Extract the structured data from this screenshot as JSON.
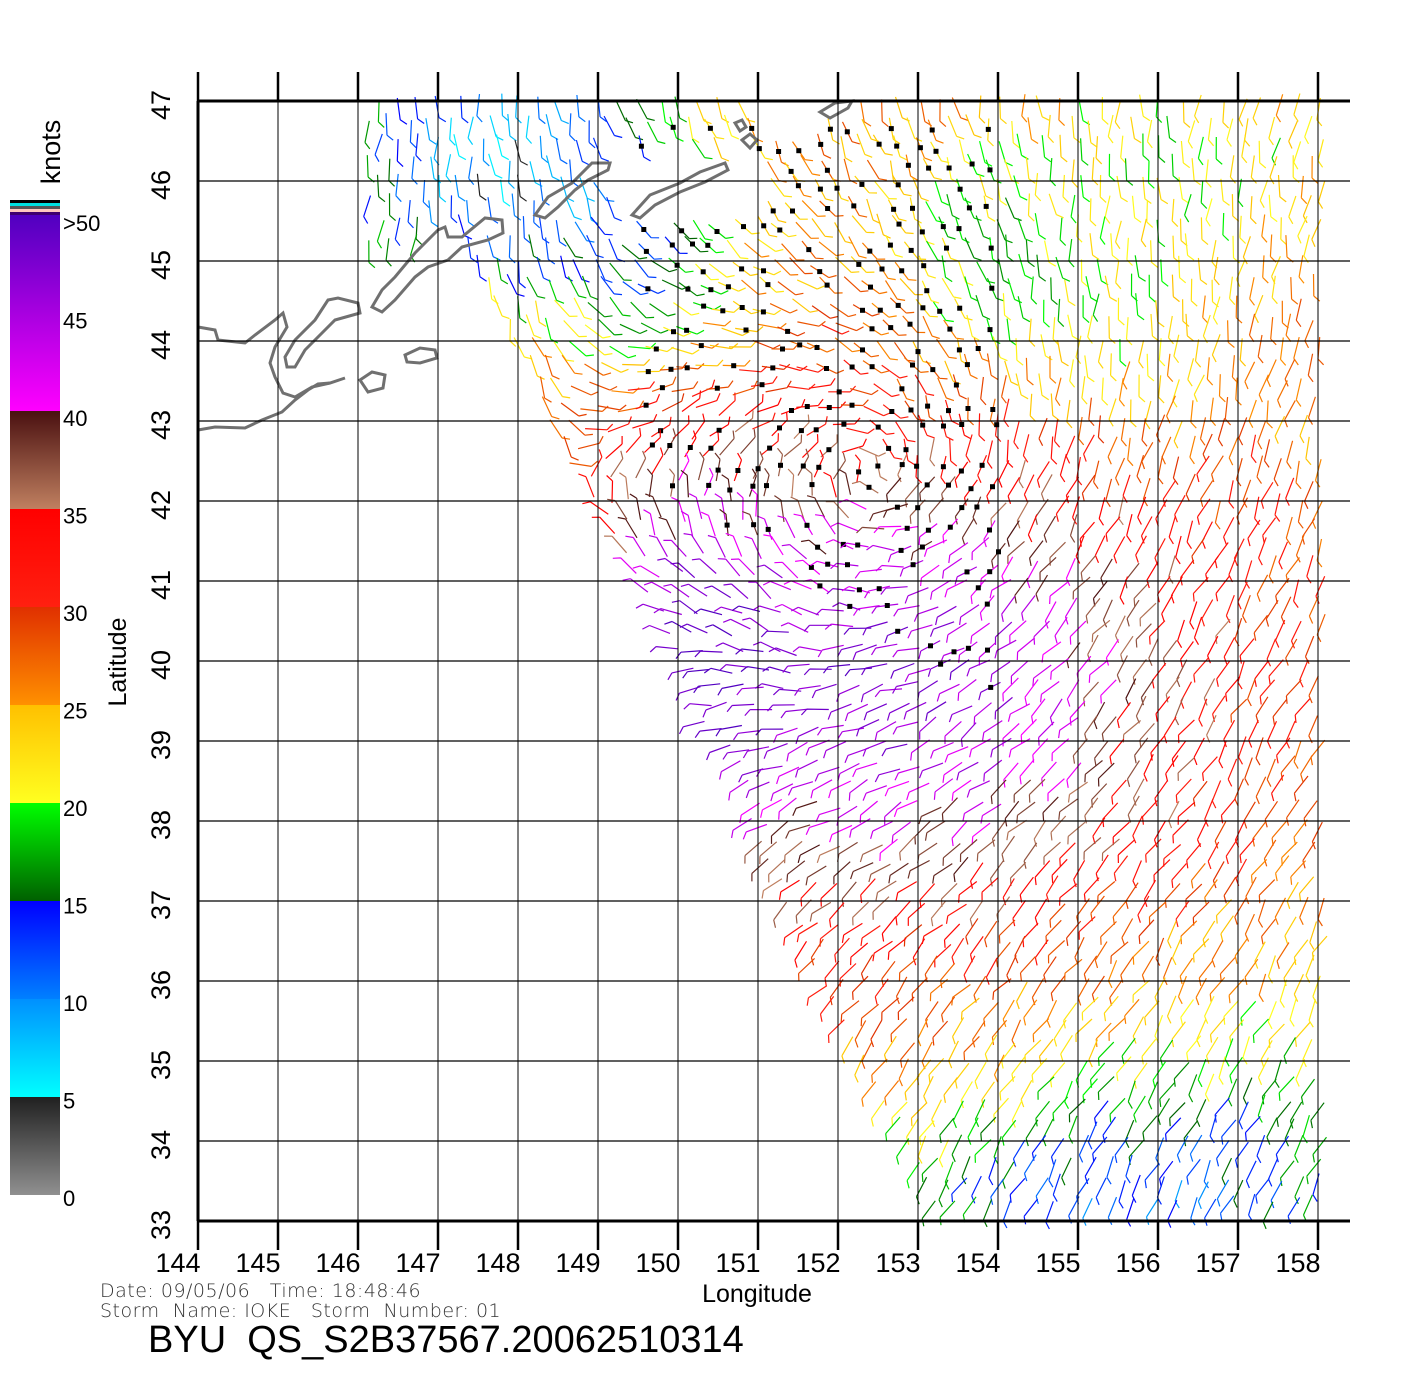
{
  "map": {
    "xlabel": "Longitude",
    "ylabel": "Latitude",
    "lon_ticks": [
      "144",
      "145",
      "146",
      "147",
      "148",
      "149",
      "150",
      "151",
      "152",
      "153",
      "154",
      "155",
      "156",
      "157",
      "158"
    ],
    "lat_ticks": [
      "47",
      "46",
      "45",
      "44",
      "43",
      "42",
      "41",
      "40",
      "39",
      "38",
      "37",
      "36",
      "35",
      "34",
      "33"
    ],
    "coastline_color": "#707070",
    "rain_flag_color": "#000000"
  },
  "colorbar": {
    "unit": "knots",
    "labels": [
      "0",
      "5",
      "10",
      "15",
      "20",
      "25",
      "30",
      "35",
      "40",
      "45",
      ">50"
    ],
    "segments": [
      {
        "range": "0-5",
        "from": "#909090",
        "to": "#202020"
      },
      {
        "range": "5-10",
        "from": "#00ffff",
        "to": "#0090ff"
      },
      {
        "range": "10-15",
        "from": "#0080ff",
        "to": "#0000ff"
      },
      {
        "range": "15-20",
        "from": "#006000",
        "to": "#00ff00"
      },
      {
        "range": "20-25",
        "from": "#ffff20",
        "to": "#ffc000"
      },
      {
        "range": "25-30",
        "from": "#ff9000",
        "to": "#e03000"
      },
      {
        "range": "30-35",
        "from": "#ff2010",
        "to": "#ff0000"
      },
      {
        "range": "35-40",
        "from": "#c08060",
        "to": "#4a1010"
      },
      {
        "range": "40-50",
        "from": "#ff00ff",
        "to": "#5000c0"
      }
    ],
    "top_stripes": [
      "#000000",
      "#00e0e0",
      "#555555",
      "#ffc8c0",
      "#400070"
    ]
  },
  "info": {
    "date_line": "Date: 09/05/06   Time: 18:48:46",
    "storm_line": "Storm  Name: IOKE   Storm  Number: 01",
    "title": "BYU  QS_S2B37567.20062510314"
  },
  "chart_data": {
    "type": "vector-field",
    "xlabel": "Longitude",
    "ylabel": "Latitude",
    "xlim": [
      144,
      158
    ],
    "ylim": [
      33,
      47
    ],
    "grid": true,
    "colorbar_unit": "knots",
    "colorbar_range": [
      0,
      50
    ]
  }
}
